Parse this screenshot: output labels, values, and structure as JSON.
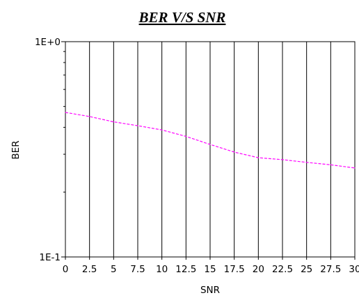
{
  "chart_data": {
    "type": "line",
    "title": "BER V/S SNR",
    "xlabel": "SNR",
    "ylabel": "BER",
    "x_scale": "linear",
    "y_scale": "log",
    "xlim": [
      0,
      30
    ],
    "ylim": [
      0.1,
      1
    ],
    "x_ticks": [
      "0",
      "2.5",
      "5",
      "7.5",
      "10",
      "12.5",
      "15",
      "17.5",
      "20",
      "22.5",
      "25",
      "27.5",
      "30"
    ],
    "y_ticks": [
      "1E-1",
      "1E+0"
    ],
    "grid": "vertical",
    "series": [
      {
        "x": [
          0,
          2.5,
          5,
          7.5,
          10,
          12.5,
          15,
          17.5,
          20,
          22.5,
          25,
          27.5,
          30
        ],
        "y": [
          0.469,
          0.449,
          0.424,
          0.407,
          0.389,
          0.363,
          0.333,
          0.307,
          0.289,
          0.283,
          0.275,
          0.268,
          0.259
        ],
        "color": "#ff00ff",
        "style": "dashed"
      }
    ]
  }
}
